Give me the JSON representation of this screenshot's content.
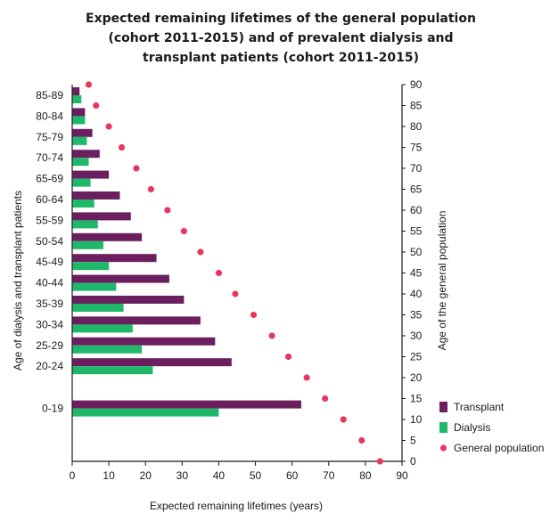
{
  "chart_data": {
    "type": "bar",
    "orientation": "horizontal",
    "title_lines": [
      "Expected remaining lifetimes of the general population",
      "(cohort 2011-2015) and of prevalent dialysis and",
      "transplant patients (cohort 2011-2015)"
    ],
    "xlabel": "Expected remaining lifetimes (years)",
    "ylabel": "Age of dialysis  and  transplant patients",
    "y2label": "Age of the general population",
    "xlim": [
      0,
      90
    ],
    "x_ticks": [
      "0",
      "10",
      "20",
      "30",
      "40",
      "50",
      "60",
      "70",
      "80",
      "90"
    ],
    "y2lim": [
      0,
      90
    ],
    "y2_ticks": [
      "0",
      "5",
      "10",
      "15",
      "20",
      "25",
      "30",
      "35",
      "40",
      "45",
      "50",
      "55",
      "60",
      "65",
      "70",
      "75",
      "80",
      "85",
      "90"
    ],
    "categories": [
      "0-19",
      "20-24",
      "25-29",
      "30-34",
      "35-39",
      "40-44",
      "45-49",
      "50-54",
      "55-59",
      "60-64",
      "65-69",
      "70-74",
      "75-79",
      "80-84",
      "85-89"
    ],
    "series": [
      {
        "name": "Transplant",
        "color": "#6b1f5f",
        "values": [
          62.5,
          43.5,
          39,
          35,
          30.5,
          26.5,
          23,
          19,
          16,
          13,
          10,
          7.5,
          5.5,
          3.5,
          2
        ]
      },
      {
        "name": "Dialysis",
        "color": "#1fb86a",
        "values": [
          40,
          22,
          19,
          16.5,
          14,
          12,
          10,
          8.5,
          7,
          6,
          5,
          4.5,
          4,
          3.5,
          2.5
        ]
      }
    ],
    "general_population": {
      "name": "General population",
      "color": "#e8375e",
      "points": [
        {
          "x": 84,
          "age": 0
        },
        {
          "x": 79,
          "age": 5
        },
        {
          "x": 74,
          "age": 10
        },
        {
          "x": 69,
          "age": 15
        },
        {
          "x": 64,
          "age": 20
        },
        {
          "x": 59,
          "age": 25
        },
        {
          "x": 54.5,
          "age": 30
        },
        {
          "x": 49.5,
          "age": 35
        },
        {
          "x": 44.5,
          "age": 40
        },
        {
          "x": 40,
          "age": 45
        },
        {
          "x": 35,
          "age": 50
        },
        {
          "x": 30.5,
          "age": 55
        },
        {
          "x": 26,
          "age": 60
        },
        {
          "x": 21.5,
          "age": 65
        },
        {
          "x": 17.5,
          "age": 70
        },
        {
          "x": 13.5,
          "age": 75
        },
        {
          "x": 10,
          "age": 80
        },
        {
          "x": 6.5,
          "age": 85
        },
        {
          "x": 4.5,
          "age": 90
        }
      ]
    },
    "legend_position": "bottom-right",
    "grid": false
  }
}
